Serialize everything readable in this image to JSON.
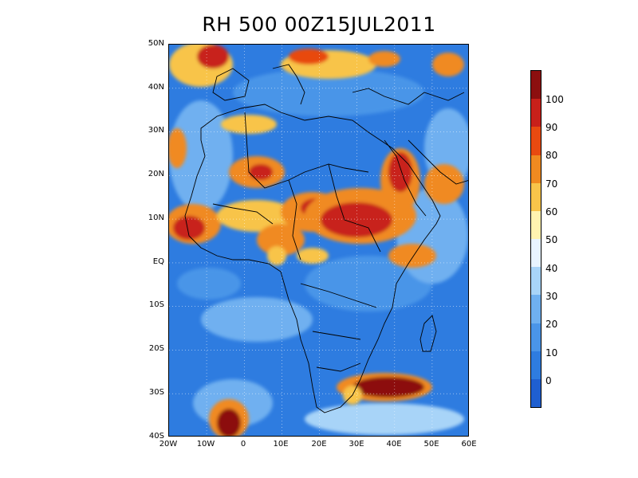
{
  "map": {
    "title": "RH 500 00Z15JUL2011",
    "region": "Africa",
    "variable": "RH 500",
    "lat_labels": [
      "50N",
      "40N",
      "30N",
      "20N",
      "10N",
      "EQ",
      "10S",
      "20S",
      "30S",
      "40S"
    ],
    "lon_labels": [
      "20W",
      "10W",
      "0",
      "10E",
      "20E",
      "30E",
      "40E",
      "50E",
      "60E"
    ],
    "lat_range": [
      -40,
      50
    ],
    "lon_range": [
      -20,
      60
    ],
    "grid": "dotted",
    "background_color": "#2e7ce0"
  },
  "colorbar": {
    "labels": [
      "0",
      "10",
      "20",
      "30",
      "40",
      "50",
      "60",
      "70",
      "80",
      "90",
      "100"
    ],
    "colors": [
      "#1f5fd0",
      "#2e7ce0",
      "#4a95e8",
      "#6fb0f0",
      "#a8d4f8",
      "#e8f4ff",
      "#fff3b0",
      "#f8c44a",
      "#f08a20",
      "#e84a10",
      "#c8201a",
      "#8c0f0f"
    ]
  },
  "features": [
    {
      "name": "Sahel moist band",
      "color": "#f08a20"
    },
    {
      "name": "East Africa moist core",
      "color": "#c8201a"
    },
    {
      "name": "South-east Africa plume",
      "color": "#8c0f0f"
    },
    {
      "name": "South Atlantic plume",
      "color": "#8c0f0f"
    },
    {
      "name": "Europe moist patches",
      "color": "#f08a20"
    }
  ]
}
